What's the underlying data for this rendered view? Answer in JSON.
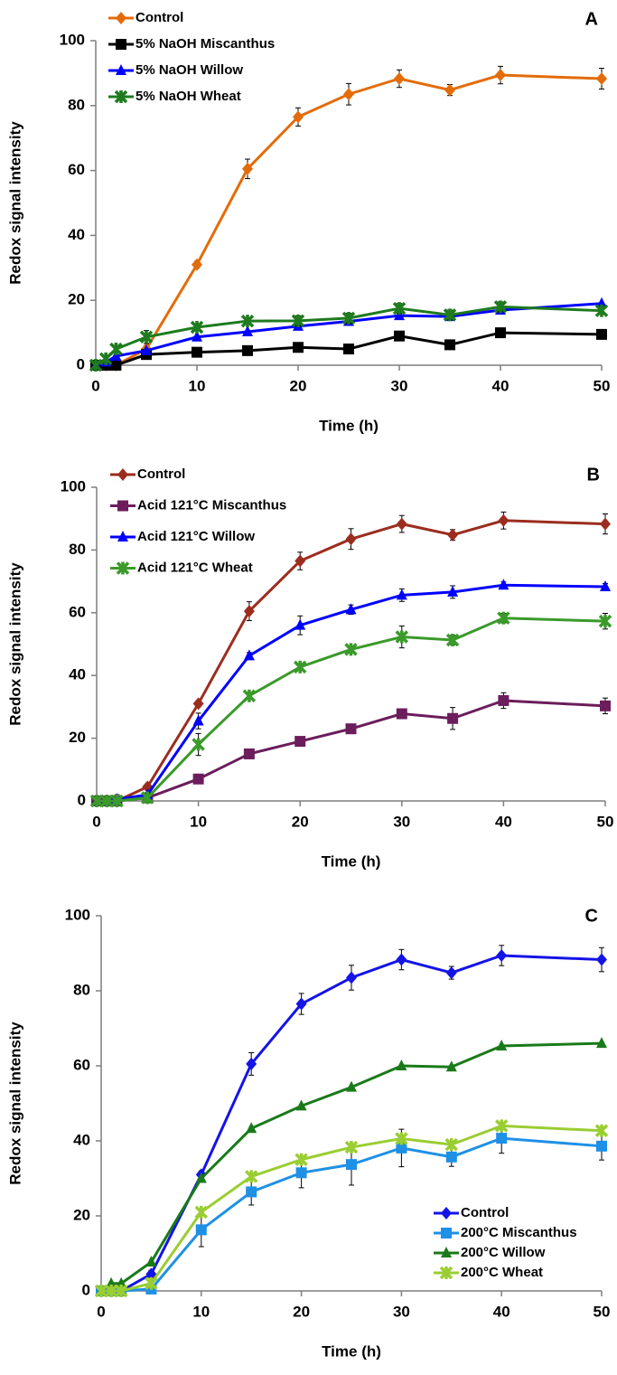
{
  "chart_data": [
    {
      "type": "line",
      "annotation": "A",
      "x_label": "Time (h)",
      "y_label": "Redox signal intensity",
      "x": [
        0,
        1,
        2,
        5,
        10,
        15,
        20,
        25,
        30,
        35,
        40,
        50
      ],
      "xlim": [
        0,
        50
      ],
      "xticks": [
        0,
        10,
        20,
        30,
        40,
        50
      ],
      "ylim": [
        0,
        100
      ],
      "yticks": [
        0,
        20,
        40,
        60,
        80,
        100
      ],
      "grid": false,
      "legend": "upper left",
      "series": [
        {
          "name": "Control",
          "color": "#e36c09",
          "marker": "diamond",
          "values": [
            0,
            0,
            0,
            5,
            31,
            60.5,
            76.5,
            83.5,
            88.3,
            84.8,
            89.4,
            88.3
          ],
          "errors": [
            0,
            0,
            0,
            1,
            1,
            3,
            2.8,
            3.3,
            2.7,
            1.7,
            2.7,
            3.2
          ]
        },
        {
          "name": "5% NaOH Miscanthus",
          "color": "#000000",
          "marker": "square",
          "values": [
            0,
            0,
            0,
            3.3,
            4,
            4.5,
            5.5,
            5,
            9,
            6.3,
            10,
            9.5
          ]
        },
        {
          "name": "5% NaOH Willow",
          "color": "#0000ff",
          "marker": "triangle",
          "values": [
            0,
            1,
            2.8,
            4.5,
            8.7,
            10.3,
            12,
            13.5,
            15.3,
            15,
            17,
            19
          ]
        },
        {
          "name": "5% NaOH Wheat",
          "color": "#1e7b1e",
          "marker": "star",
          "values": [
            0,
            2,
            5,
            8.7,
            11.7,
            13.6,
            13.7,
            14.5,
            17.5,
            15.5,
            18,
            16.8
          ],
          "errors": [
            0,
            0.5,
            1,
            2,
            1,
            1,
            1.5,
            1.5,
            1.5,
            1.5,
            1.5,
            1
          ]
        }
      ]
    },
    {
      "type": "line",
      "annotation": "B",
      "x_label": "Time (h)",
      "y_label": "Redox signal intensity",
      "x": [
        0,
        1,
        2,
        5,
        10,
        15,
        20,
        25,
        30,
        35,
        40,
        50
      ],
      "xlim": [
        0,
        50
      ],
      "xticks": [
        0,
        10,
        20,
        30,
        40,
        50
      ],
      "ylim": [
        0,
        100
      ],
      "yticks": [
        0,
        20,
        40,
        60,
        80,
        100
      ],
      "grid": false,
      "legend": "upper left",
      "series": [
        {
          "name": "Control",
          "color": "#9b2d1f",
          "marker": "diamond",
          "values": [
            0,
            0,
            0,
            4.5,
            31,
            60.5,
            76.5,
            83.5,
            88.3,
            84.8,
            89.4,
            88.3
          ],
          "errors": [
            0,
            0,
            0,
            1,
            1,
            3,
            2.8,
            3.3,
            2.7,
            1.7,
            2.7,
            3.2
          ]
        },
        {
          "name": "Acid 121°C Miscanthus",
          "color": "#6b1d5c",
          "marker": "square",
          "values": [
            0,
            0,
            0,
            1,
            7,
            15,
            19,
            23,
            27.8,
            26.3,
            32,
            30.3
          ],
          "errors": [
            0,
            0,
            0,
            0,
            0.5,
            0.5,
            1,
            1,
            1.5,
            3.5,
            2.5,
            2.5
          ]
        },
        {
          "name": "Acid 121°C Willow",
          "color": "#0000ff",
          "marker": "triangle",
          "values": [
            0,
            0,
            0.5,
            2,
            25.5,
            46.3,
            56,
            61,
            65.6,
            66.6,
            68.8,
            68.3
          ],
          "errors": [
            0,
            0,
            1.5,
            0.5,
            2.5,
            1,
            3,
            1.5,
            2,
            2,
            1,
            1
          ]
        },
        {
          "name": "Acid 121°C Wheat",
          "color": "#3a9a2a",
          "marker": "star",
          "values": [
            0,
            0,
            0,
            1,
            18,
            33.5,
            42.7,
            48.3,
            52.3,
            51.3,
            58.3,
            57.3
          ],
          "errors": [
            0,
            0,
            0,
            0.5,
            3.5,
            0.5,
            1,
            1,
            3.5,
            1.5,
            1.5,
            2.5
          ]
        }
      ]
    },
    {
      "type": "line",
      "annotation": "C",
      "x_label": "Time (h)",
      "y_label": "Redox signal intensity",
      "x": [
        0,
        1,
        2,
        5,
        10,
        15,
        20,
        25,
        30,
        35,
        40,
        50
      ],
      "xlim": [
        0,
        50
      ],
      "xticks": [
        0,
        10,
        20,
        30,
        40,
        50
      ],
      "ylim": [
        0,
        100
      ],
      "yticks": [
        0,
        20,
        40,
        60,
        80,
        100
      ],
      "grid": false,
      "legend": "lower right",
      "series": [
        {
          "name": "Control",
          "color": "#1414e6",
          "marker": "diamond",
          "values": [
            0,
            0,
            0,
            4.5,
            31,
            60.5,
            76.5,
            83.5,
            88.3,
            84.8,
            89.4,
            88.3
          ],
          "errors": [
            0,
            0,
            0,
            1,
            1,
            3,
            2.8,
            3.3,
            2.7,
            1.7,
            2.7,
            3.2
          ]
        },
        {
          "name": "200°C Miscanthus",
          "color": "#1e90e6",
          "marker": "square",
          "values": [
            0,
            0,
            0,
            0.5,
            16.3,
            26.4,
            31.5,
            33.7,
            38.1,
            35.7,
            40.7,
            38.6
          ],
          "errors": [
            0,
            0,
            0,
            0.5,
            4.5,
            3.5,
            4,
            5.5,
            5,
            2.5,
            4,
            3.7
          ]
        },
        {
          "name": "200°C Willow",
          "color": "#1a7a1a",
          "marker": "triangle",
          "values": [
            0,
            2,
            2,
            7.7,
            30,
            43.3,
            49.3,
            54.3,
            60,
            59.7,
            65.3,
            66
          ]
        },
        {
          "name": "200°C Wheat",
          "color": "#9acd32",
          "marker": "star",
          "values": [
            0,
            0,
            0,
            2,
            21,
            30.5,
            35,
            38.3,
            40.6,
            39,
            44,
            42.7
          ]
        }
      ]
    }
  ]
}
